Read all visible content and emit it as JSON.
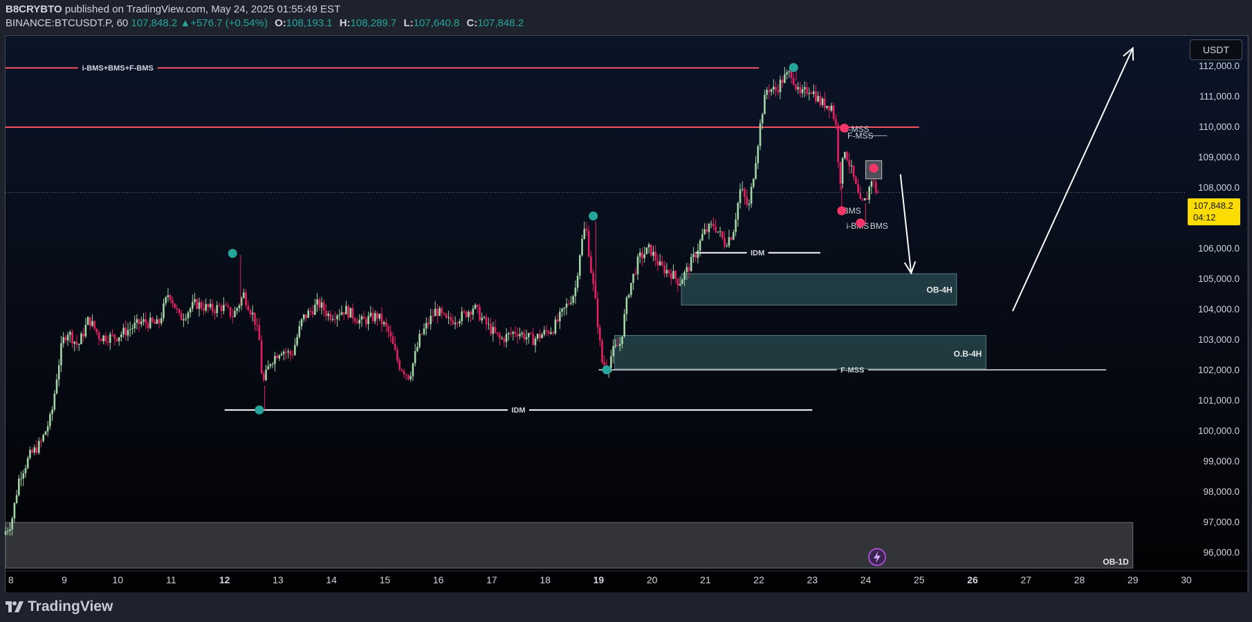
{
  "header": {
    "author": "B8CRYBTO",
    "published_text": "published on TradingView.com, May 24, 2025 01:55:49 EST",
    "symbol": "BINANCE:BTCUSDT.P, 60",
    "last": "107,848.2",
    "change": "▲+576.7 (+0.54%)",
    "o_label": "O:",
    "o_value": "108,193.1",
    "h_label": "H:",
    "h_value": "108,289.7",
    "l_label": "L:",
    "l_value": "107,640.8",
    "c_label": "C:",
    "c_value": "107,848.2"
  },
  "currency_button": "USDT",
  "price_tag": {
    "price": "107,848.2",
    "countdown": "04:12"
  },
  "footer": {
    "brand": "TradingView"
  },
  "colors": {
    "background": "#050812",
    "up": "#a5d6a7",
    "down": "#e91e63",
    "resistance": "#f7525f",
    "zone": "#2a4b50",
    "marker_green": "#26a69a",
    "marker_red": "#f23669",
    "price_tag": "#fddc02"
  },
  "chart_data": {
    "type": "candlestick",
    "ylim": [
      95500,
      113000
    ],
    "xlim": [
      7.9,
      30.0
    ],
    "y_ticks": [
      "112,000.0",
      "111,000.0",
      "110,000.0",
      "109,000.0",
      "108,000.0",
      "107,000.0",
      "106,000.0",
      "105,000.0",
      "104,000.0",
      "103,000.0",
      "102,000.0",
      "101,000.0",
      "100,000.0",
      "99,000.0",
      "98,000.0",
      "97,000.0",
      "96,000.0"
    ],
    "y_tick_values": [
      112000,
      111000,
      110000,
      109000,
      108000,
      107000,
      106000,
      105000,
      104000,
      103000,
      102000,
      101000,
      100000,
      99000,
      98000,
      97000,
      96000
    ],
    "x_ticks": [
      "8",
      "9",
      "10",
      "11",
      "12",
      "13",
      "14",
      "15",
      "16",
      "17",
      "18",
      "19",
      "20",
      "21",
      "22",
      "23",
      "24",
      "25",
      "26",
      "27",
      "28",
      "29",
      "30"
    ],
    "x_tick_values": [
      8,
      9,
      10,
      11,
      12,
      13,
      14,
      15,
      16,
      17,
      18,
      19,
      20,
      21,
      22,
      23,
      24,
      25,
      26,
      27,
      28,
      29,
      30
    ],
    "bold_ticks": [
      "12",
      "19",
      "26"
    ],
    "last_price": 107848.2,
    "price_path": [
      [
        7.9,
        96600
      ],
      [
        8.05,
        97000
      ],
      [
        8.2,
        98500
      ],
      [
        8.4,
        99200
      ],
      [
        8.6,
        99600
      ],
      [
        8.8,
        100500
      ],
      [
        8.9,
        101800
      ],
      [
        9.0,
        102900
      ],
      [
        9.1,
        103300
      ],
      [
        9.3,
        102800
      ],
      [
        9.5,
        103700
      ],
      [
        9.7,
        103100
      ],
      [
        10.0,
        103100
      ],
      [
        10.2,
        103300
      ],
      [
        10.5,
        103600
      ],
      [
        10.8,
        103500
      ],
      [
        11.0,
        104600
      ],
      [
        11.2,
        103700
      ],
      [
        11.5,
        104200
      ],
      [
        11.8,
        104000
      ],
      [
        12.0,
        104100
      ],
      [
        12.2,
        103800
      ],
      [
        12.4,
        104500
      ],
      [
        12.6,
        103700
      ],
      [
        12.7,
        102900
      ],
      [
        12.75,
        101500
      ],
      [
        12.9,
        102300
      ],
      [
        13.1,
        102700
      ],
      [
        13.3,
        102500
      ],
      [
        13.5,
        103700
      ],
      [
        13.8,
        104200
      ],
      [
        14.0,
        103800
      ],
      [
        14.3,
        104000
      ],
      [
        14.6,
        103600
      ],
      [
        14.9,
        103800
      ],
      [
        15.1,
        103300
      ],
      [
        15.3,
        102200
      ],
      [
        15.5,
        101800
      ],
      [
        15.7,
        103100
      ],
      [
        16.0,
        104000
      ],
      [
        16.2,
        103600
      ],
      [
        16.5,
        103800
      ],
      [
        16.7,
        104100
      ],
      [
        16.9,
        103600
      ],
      [
        17.2,
        103000
      ],
      [
        17.5,
        103300
      ],
      [
        17.8,
        103000
      ],
      [
        18.0,
        103200
      ],
      [
        18.2,
        103400
      ],
      [
        18.4,
        104000
      ],
      [
        18.6,
        104600
      ],
      [
        18.7,
        106000
      ],
      [
        18.8,
        106800
      ],
      [
        18.9,
        105300
      ],
      [
        19.0,
        104000
      ],
      [
        19.1,
        102300
      ],
      [
        19.2,
        102100
      ],
      [
        19.3,
        102600
      ],
      [
        19.45,
        102900
      ],
      [
        19.6,
        104600
      ],
      [
        19.8,
        105700
      ],
      [
        20.0,
        106000
      ],
      [
        20.2,
        105400
      ],
      [
        20.4,
        105200
      ],
      [
        20.55,
        104900
      ],
      [
        20.7,
        105300
      ],
      [
        20.85,
        105800
      ],
      [
        21.0,
        106500
      ],
      [
        21.2,
        106800
      ],
      [
        21.4,
        106200
      ],
      [
        21.55,
        106500
      ],
      [
        21.7,
        108000
      ],
      [
        21.85,
        107300
      ],
      [
        22.0,
        109200
      ],
      [
        22.1,
        110500
      ],
      [
        22.2,
        111300
      ],
      [
        22.35,
        111200
      ],
      [
        22.5,
        111600
      ],
      [
        22.65,
        111800
      ],
      [
        22.8,
        111000
      ],
      [
        23.0,
        111300
      ],
      [
        23.2,
        110800
      ],
      [
        23.4,
        110700
      ],
      [
        23.5,
        109900
      ],
      [
        23.55,
        108100
      ],
      [
        23.65,
        109300
      ],
      [
        23.8,
        108400
      ],
      [
        23.95,
        107400
      ],
      [
        24.05,
        107600
      ],
      [
        24.15,
        108300
      ],
      [
        24.25,
        107848
      ]
    ],
    "extreme_wicks": [
      {
        "x": 12.3,
        "v": 105800
      },
      {
        "x": 12.75,
        "v": 100700
      },
      {
        "x": 18.95,
        "v": 106900
      },
      {
        "x": 22.7,
        "v": 111950
      },
      {
        "x": 23.55,
        "v": 107300
      },
      {
        "x": 24.0,
        "v": 106800
      }
    ],
    "annotations": [
      {
        "label": "i-BMS+BMS+F-BMS",
        "kind": "hline",
        "y": 111950,
        "x0": 7.9,
        "x1": 22.0,
        "color": "#f7525f"
      },
      {
        "label": "",
        "kind": "hline",
        "y": 110000,
        "x0": 7.9,
        "x1": 25.0,
        "color": "#f7525f"
      },
      {
        "label": "IDM",
        "kind": "hline",
        "y": 100700,
        "x0": 12.0,
        "x1": 23.0,
        "color": "#ffffff"
      },
      {
        "label": "IDM",
        "kind": "hline",
        "y": 105870,
        "x0": 20.8,
        "x1": 23.15,
        "color": "#ffffff"
      },
      {
        "label": "F-MSS",
        "kind": "hline",
        "y": 102020,
        "x0": 19.0,
        "x1": 28.5,
        "color": "#b2b5be"
      },
      {
        "label": "I-MSS",
        "kind": "text",
        "x": 23.85,
        "y": 109930
      },
      {
        "label": "F-MSS",
        "kind": "text",
        "x": 23.9,
        "y": 109720
      },
      {
        "label": "i-BMS",
        "kind": "text",
        "x": 23.7,
        "y": 107250
      },
      {
        "label": "i-BMS",
        "kind": "text",
        "x": 23.85,
        "y": 106750
      },
      {
        "label": "BMS",
        "kind": "text",
        "x": 24.25,
        "y": 106750
      }
    ],
    "zones": [
      {
        "label": "OB-4H",
        "x0": 20.55,
        "x1": 25.7,
        "y0": 104150,
        "y1": 105180
      },
      {
        "label": "O.B-4H",
        "x0": 19.3,
        "x1": 26.25,
        "y0": 102050,
        "y1": 103150
      },
      {
        "label": "OB-1D",
        "x0": 7.9,
        "x1": 29.0,
        "y0": 95500,
        "y1": 97000
      }
    ],
    "markers": [
      {
        "color": "green",
        "x": 12.15,
        "y": 105850
      },
      {
        "color": "green",
        "x": 12.65,
        "y": 100700
      },
      {
        "color": "green",
        "x": 18.9,
        "y": 107080
      },
      {
        "color": "green",
        "x": 19.15,
        "y": 102020
      },
      {
        "color": "green",
        "x": 22.65,
        "y": 111960
      },
      {
        "color": "red",
        "x": 23.6,
        "y": 109970
      },
      {
        "color": "red",
        "x": 23.55,
        "y": 107250
      },
      {
        "color": "red",
        "x": 24.15,
        "y": 108650
      },
      {
        "color": "red",
        "x": 23.9,
        "y": 106850
      }
    ],
    "arrows": [
      {
        "from": [
          24.65,
          108450
        ],
        "to": [
          24.85,
          105200
        ]
      },
      {
        "from": [
          26.75,
          103950
        ],
        "to": [
          29.0,
          112600
        ]
      }
    ]
  }
}
